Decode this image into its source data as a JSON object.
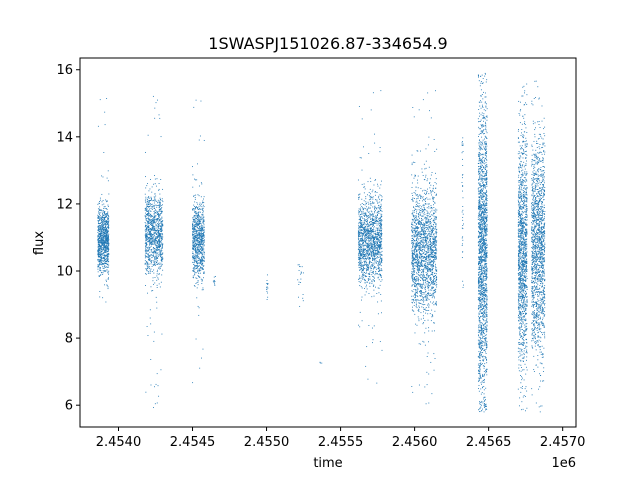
{
  "chart_data": {
    "type": "scatter",
    "title": "1SWASPJ151026.87-334654.9",
    "xlabel": "time",
    "ylabel": "flux",
    "x_offset_label": "1e6",
    "xlim": [
      2453740,
      2457090
    ],
    "ylim": [
      5.35,
      16.35
    ],
    "x_ticks": [
      2453750,
      2454250,
      2454750,
      2455250,
      2455750,
      2456250,
      2456750,
      2457250
    ],
    "x_tick_labels": [
      "2.4540",
      "2.4545",
      "2.4550",
      "2.4555",
      "2.4560",
      "2.4565",
      "2.4570"
    ],
    "x_tick_values": [
      2454000,
      2454500,
      2455000,
      2455500,
      2456000,
      2456500,
      2457000
    ],
    "y_tick_values": [
      6,
      8,
      10,
      12,
      14,
      16
    ],
    "y_tick_labels": [
      "6",
      "8",
      "10",
      "12",
      "14",
      "16"
    ],
    "marker_color": "#1f77b4",
    "grid": false,
    "series": [
      {
        "clusters": [
          {
            "x": [
              2453860,
              2453935
            ],
            "center": 10.9,
            "spread": 0.5,
            "n": 900,
            "min": 9.0,
            "max": 15.3
          },
          {
            "x": [
              2454180,
              2454300
            ],
            "center": 11.1,
            "spread": 0.6,
            "n": 1000,
            "min": 5.9,
            "max": 15.5
          },
          {
            "x": [
              2454500,
              2454580
            ],
            "center": 10.9,
            "spread": 0.55,
            "n": 800,
            "min": 6.0,
            "max": 15.7
          },
          {
            "x": [
              2454640,
              2454660
            ],
            "center": 9.7,
            "spread": 0.1,
            "n": 10,
            "min": 9.5,
            "max": 9.9
          },
          {
            "x": [
              2455000,
              2455010
            ],
            "center": 9.5,
            "spread": 0.2,
            "n": 15,
            "min": 9.0,
            "max": 10.0
          },
          {
            "x": [
              2455210,
              2455250
            ],
            "center": 9.6,
            "spread": 0.4,
            "n": 20,
            "min": 8.9,
            "max": 10.2
          },
          {
            "x": [
              2455360,
              2455380
            ],
            "center": 7.3,
            "spread": 0.1,
            "n": 3,
            "min": 7.2,
            "max": 7.4
          },
          {
            "x": [
              2455620,
              2455780
            ],
            "center": 10.9,
            "spread": 0.65,
            "n": 1400,
            "min": 6.5,
            "max": 15.4
          },
          {
            "x": [
              2455980,
              2456150
            ],
            "center": 10.6,
            "spread": 0.9,
            "n": 1700,
            "min": 5.9,
            "max": 15.4
          },
          {
            "x": [
              2456320,
              2456330
            ],
            "center": 12.0,
            "spread": 1.5,
            "n": 40,
            "min": 9.3,
            "max": 14.0
          },
          {
            "x": [
              2456430,
              2456490
            ],
            "center": 10.6,
            "spread": 2.1,
            "n": 1800,
            "min": 5.8,
            "max": 15.9
          },
          {
            "x": [
              2456700,
              2456760
            ],
            "center": 10.6,
            "spread": 1.7,
            "n": 1300,
            "min": 5.8,
            "max": 15.6
          },
          {
            "x": [
              2456790,
              2456880
            ],
            "center": 10.7,
            "spread": 1.5,
            "n": 1500,
            "min": 5.8,
            "max": 15.8
          }
        ]
      }
    ]
  }
}
